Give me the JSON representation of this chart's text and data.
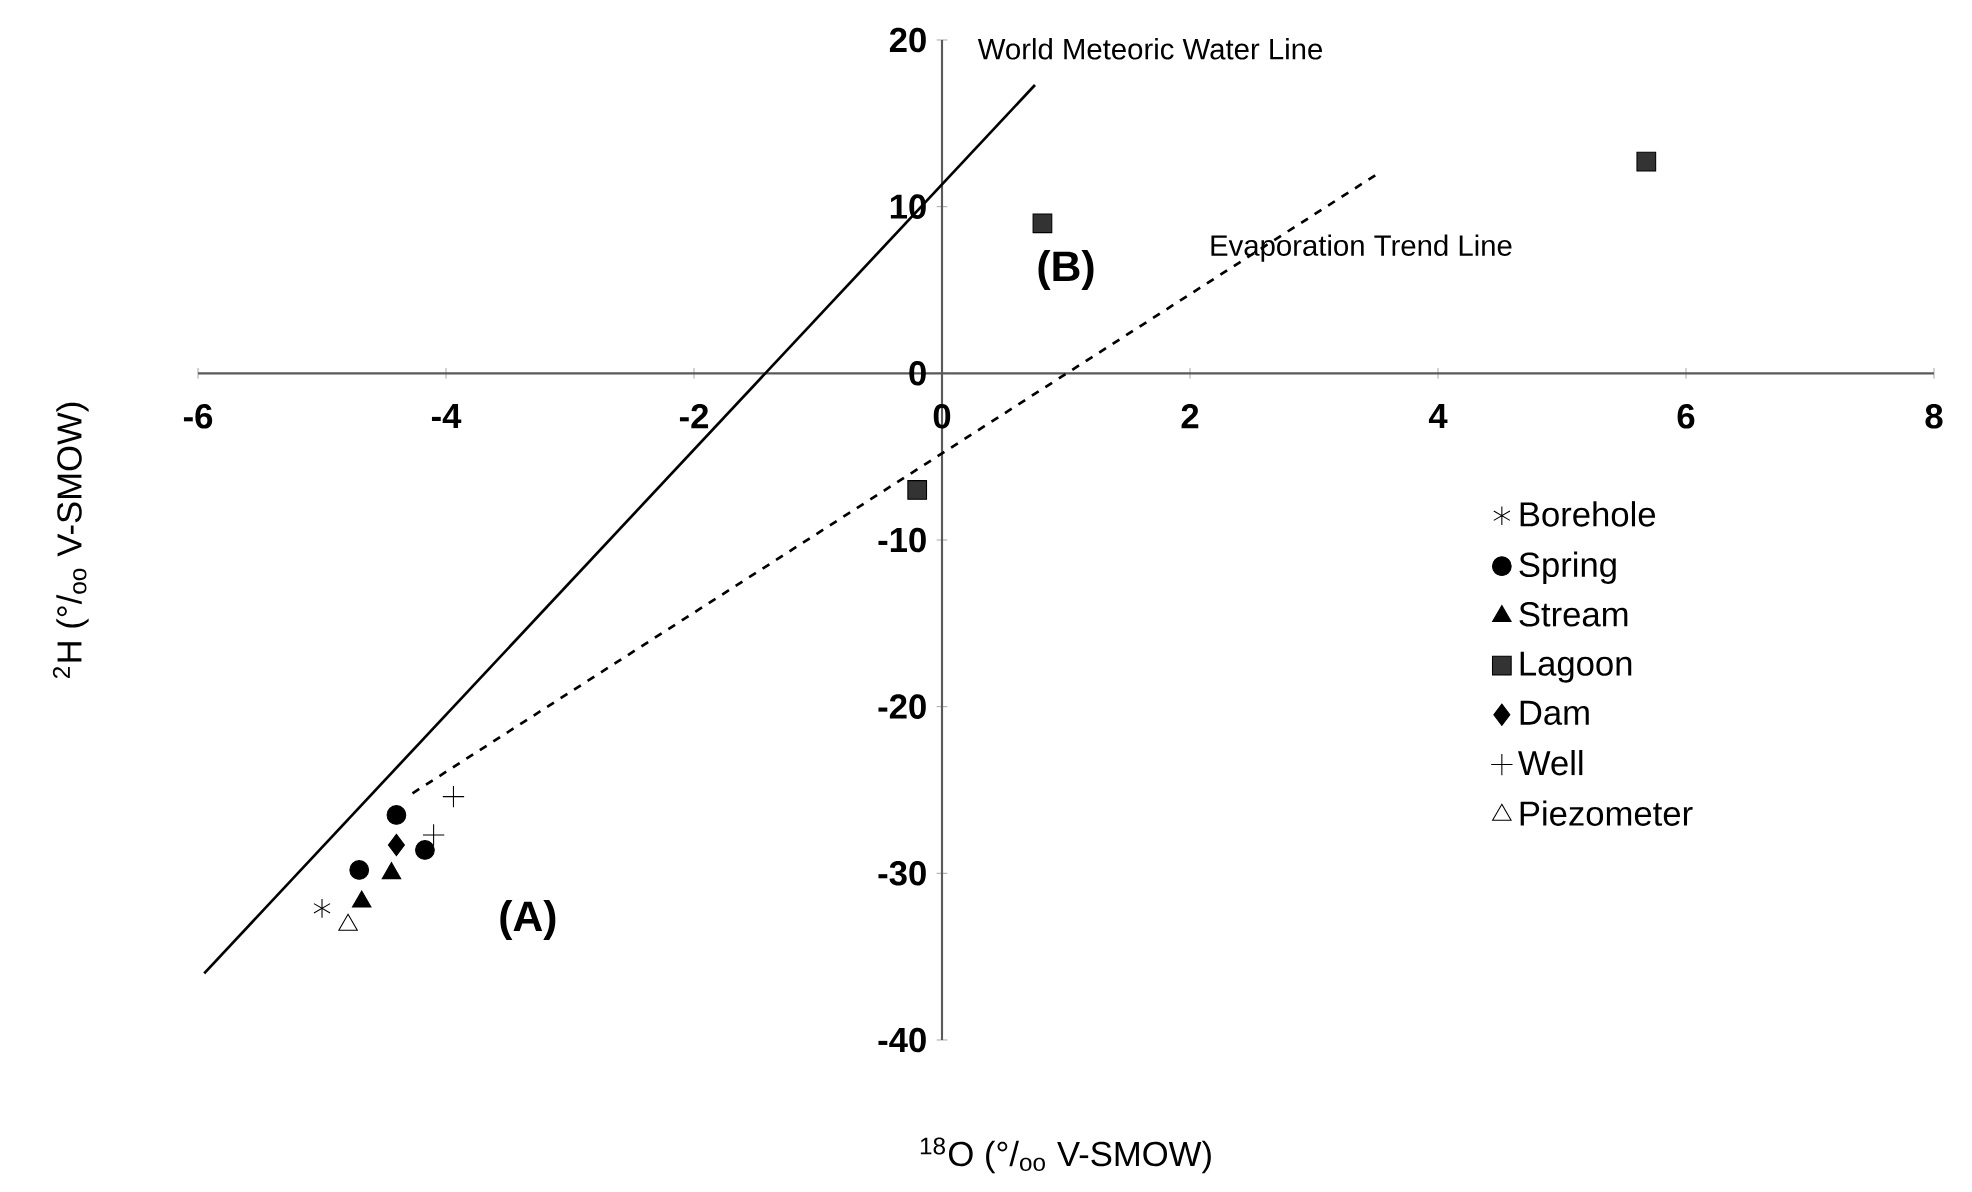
{
  "chart_data": {
    "type": "scatter",
    "xlabel": "$^{18}$O (°/$_{oo}$ V-SMOW)",
    "ylabel": "$^{2}$H (°/$_{oo}$ V-SMOW)",
    "xlim": [
      -6,
      8
    ],
    "ylim": [
      -40,
      20
    ],
    "xticks": [
      -6,
      -4,
      -2,
      0,
      2,
      4,
      6,
      8
    ],
    "yticks": [
      -40,
      -30,
      -20,
      -10,
      0,
      10,
      20
    ],
    "grid": false,
    "legend": "bottom right",
    "series": [
      {
        "name": "Borehole",
        "color": "#000000",
        "x": [
          -5.0
        ],
        "values": [
          -32.1
        ]
      },
      {
        "name": "Spring",
        "marker": "circle",
        "color": "#000000",
        "x": [
          -4.7,
          -4.4,
          -4.17
        ],
        "values": [
          -29.8,
          -26.5,
          -28.6
        ]
      },
      {
        "name": "Stream",
        "marker": "triangle",
        "color": "#000000",
        "x": [
          -4.68,
          -4.44
        ],
        "values": [
          -31.7,
          -30.0
        ]
      },
      {
        "name": "Lagoon",
        "marker": "square",
        "color": "#333333",
        "x": [
          -0.2,
          0.81,
          5.68
        ],
        "values": [
          -7.0,
          9.0,
          12.7
        ]
      },
      {
        "name": "Dam",
        "marker": "diamond",
        "color": "#000000",
        "x": [
          -4.4
        ],
        "values": [
          -28.3
        ]
      },
      {
        "name": "Well",
        "marker": "cross",
        "color": "#000000",
        "x": [
          -4.1,
          -3.94
        ],
        "values": [
          -27.7,
          -25.4
        ]
      },
      {
        "name": "Piezometer",
        "marker": "triangle",
        "color": "#ffffff",
        "x": [
          -4.79
        ],
        "values": [
          -33.1
        ]
      },
      {
        "name": "World Meteoric Water Line",
        "type": "line",
        "line_style": "solid",
        "color": "#000000",
        "x": [
          -5.95,
          0.75
        ],
        "values": [
          -36,
          17.3
        ]
      },
      {
        "name": "Evaporation Trend Line",
        "type": "line",
        "line_style": "dashed",
        "color": "#000000",
        "x": [
          -4.27,
          3.54
        ],
        "values": [
          -25.2,
          12.1
        ]
      }
    ],
    "annotations": [
      "(A)",
      "(B)"
    ]
  }
}
